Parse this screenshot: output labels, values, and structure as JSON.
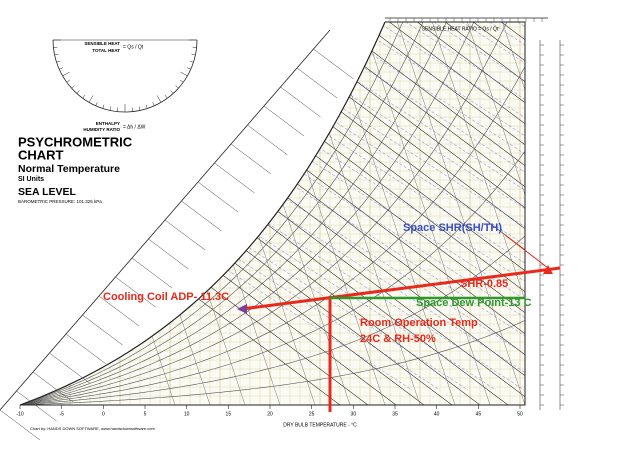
{
  "header": {
    "title": "PSYCHROMETRIC",
    "title2": "CHART",
    "subtitle": "Normal Temperature",
    "units": "SI Units",
    "level": "SEA LEVEL",
    "pressure": "BAROMETRIC PRESSURE: 101.325 kPa"
  },
  "protractor": {
    "shr_top": "SENSIBLE HEAT",
    "shr_bottom": "TOTAL HEAT",
    "shr_eq": "= Qs / Qt",
    "enth_top": "ENTHALPY",
    "enth_bottom": "HUMIDITY RATIO",
    "enth_eq": "= Δh / ΔW"
  },
  "axes": {
    "x_label": "DRY BULB TEMPERATURE - °C",
    "x_ticks": [
      -10,
      -5,
      0,
      5,
      10,
      15,
      20,
      25,
      30,
      35,
      40,
      45,
      50
    ],
    "top_label": "SENSIBLE HEAT RATIO = Qs / Qt"
  },
  "annotations": {
    "space_shr": "Space SHR(SH/TH)",
    "shr": "SHR-0.85",
    "adp": "Cooling Coil ADP- 11.3C",
    "dew_point": "Space Dew Point-13 C",
    "room_1": "Room Operation Temp",
    "room_2": "24C & RH-50%"
  },
  "credit": "Chart by: HANDS DOWN SOFTWARE, www.handsdownsoftware.com"
}
